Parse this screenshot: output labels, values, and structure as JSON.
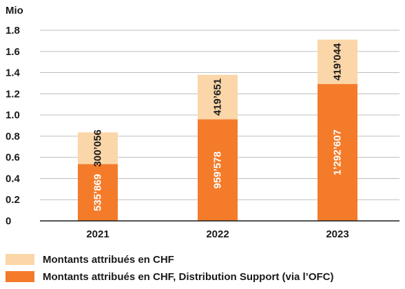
{
  "chart_data": {
    "type": "bar",
    "stacked": true,
    "unit": "Mio",
    "categories": [
      "2021",
      "2022",
      "2023"
    ],
    "ylim": [
      0,
      1.8
    ],
    "yticks": [
      "0",
      "0.2",
      "0.4",
      "0.6",
      "0.8",
      "1.0",
      "1.2",
      "1.4",
      "1.6",
      "1.8"
    ],
    "ytick_values": [
      0,
      0.2,
      0.4,
      0.6,
      0.8,
      1.0,
      1.2,
      1.4,
      1.6,
      1.8
    ],
    "grid": true,
    "legend_position": "bottom-left",
    "series": [
      {
        "name": "Montants attribués en CHF, Distribution Support (via l’OFC)",
        "color": "#f47b2a",
        "label_color": "#ffffff",
        "values": [
          0.535869,
          0.959578,
          1.292607
        ],
        "labels": [
          "535’869",
          "959’578",
          "1’292’607"
        ]
      },
      {
        "name": "Montants attribués en CHF",
        "color": "#fbd6a8",
        "label_color": "#1a1a1a",
        "values": [
          0.300056,
          0.419651,
          0.419044
        ],
        "labels": [
          "300’056",
          "419’651",
          "419’044"
        ]
      }
    ]
  },
  "legend": [
    {
      "label": "Montants attribués en CHF",
      "color": "#fbd6a8"
    },
    {
      "label": "Montants attribués en CHF, Distribution Support (via l’OFC)",
      "color": "#f47b2a"
    }
  ]
}
